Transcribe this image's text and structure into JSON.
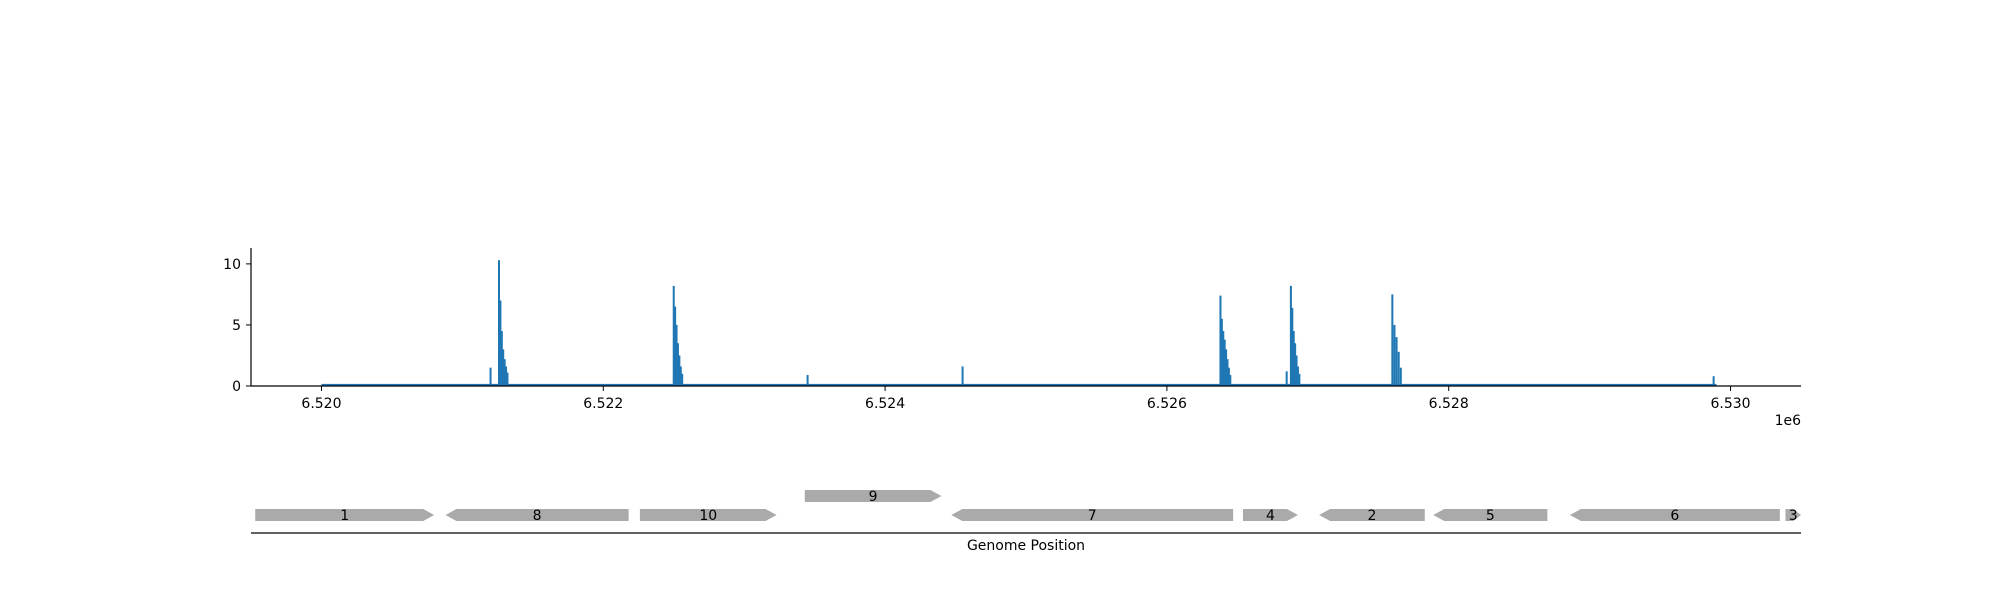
{
  "chart_data": [
    {
      "type": "bar",
      "xlim": [
        6519500,
        6530500
      ],
      "ylim": [
        0,
        11.3
      ],
      "x_offset_label": "1e6",
      "x_ticks": [
        {
          "value": 6520000,
          "label": "6.520"
        },
        {
          "value": 6522000,
          "label": "6.522"
        },
        {
          "value": 6524000,
          "label": "6.524"
        },
        {
          "value": 6526000,
          "label": "6.526"
        },
        {
          "value": 6528000,
          "label": "6.528"
        },
        {
          "value": 6530000,
          "label": "6.530"
        }
      ],
      "y_ticks": [
        {
          "value": 0,
          "label": "0"
        },
        {
          "value": 5,
          "label": "5"
        },
        {
          "value": 10,
          "label": "10"
        }
      ],
      "baseline": {
        "x_start": 6520000,
        "x_end": 6529900,
        "value": 0.05
      },
      "color": "#1f77b4",
      "points": [
        {
          "x": 6521200,
          "y": 1.5
        },
        {
          "x": 6521260,
          "y": 10.3
        },
        {
          "x": 6521270,
          "y": 7.0
        },
        {
          "x": 6521280,
          "y": 4.5
        },
        {
          "x": 6521290,
          "y": 3.0
        },
        {
          "x": 6521300,
          "y": 2.2
        },
        {
          "x": 6521310,
          "y": 1.6
        },
        {
          "x": 6521320,
          "y": 1.1
        },
        {
          "x": 6522500,
          "y": 8.2
        },
        {
          "x": 6522510,
          "y": 6.5
        },
        {
          "x": 6522520,
          "y": 5.0
        },
        {
          "x": 6522530,
          "y": 3.5
        },
        {
          "x": 6522540,
          "y": 2.5
        },
        {
          "x": 6522550,
          "y": 1.6
        },
        {
          "x": 6522560,
          "y": 1.0
        },
        {
          "x": 6523450,
          "y": 0.9
        },
        {
          "x": 6524550,
          "y": 1.6
        },
        {
          "x": 6526380,
          "y": 7.4
        },
        {
          "x": 6526390,
          "y": 5.5
        },
        {
          "x": 6526400,
          "y": 4.5
        },
        {
          "x": 6526410,
          "y": 3.8
        },
        {
          "x": 6526420,
          "y": 3.0
        },
        {
          "x": 6526430,
          "y": 2.2
        },
        {
          "x": 6526440,
          "y": 1.5
        },
        {
          "x": 6526450,
          "y": 0.9
        },
        {
          "x": 6526850,
          "y": 1.2
        },
        {
          "x": 6526880,
          "y": 8.2
        },
        {
          "x": 6526890,
          "y": 6.4
        },
        {
          "x": 6526900,
          "y": 4.5
        },
        {
          "x": 6526910,
          "y": 3.5
        },
        {
          "x": 6526920,
          "y": 2.5
        },
        {
          "x": 6526930,
          "y": 1.6
        },
        {
          "x": 6526940,
          "y": 1.0
        },
        {
          "x": 6527600,
          "y": 7.5
        },
        {
          "x": 6527615,
          "y": 5.0
        },
        {
          "x": 6527630,
          "y": 4.0
        },
        {
          "x": 6527645,
          "y": 2.8
        },
        {
          "x": 6527660,
          "y": 1.5
        },
        {
          "x": 6529880,
          "y": 0.8
        }
      ]
    },
    {
      "type": "gene-track",
      "xlabel": "Genome Position",
      "genes": [
        {
          "label": "1",
          "start": 6519530,
          "end": 6520800,
          "strand": "+",
          "row": 0
        },
        {
          "label": "8",
          "start": 6520880,
          "end": 6522180,
          "strand": "-",
          "row": 0
        },
        {
          "label": "10",
          "start": 6522260,
          "end": 6523230,
          "strand": "+",
          "row": 0
        },
        {
          "label": "9",
          "start": 6523430,
          "end": 6524400,
          "strand": "+",
          "row": 1
        },
        {
          "label": "7",
          "start": 6524470,
          "end": 6526470,
          "strand": "-",
          "row": 0
        },
        {
          "label": "4",
          "start": 6526540,
          "end": 6526930,
          "strand": "+",
          "row": 0
        },
        {
          "label": "2",
          "start": 6527080,
          "end": 6527830,
          "strand": "-",
          "row": 0
        },
        {
          "label": "5",
          "start": 6527890,
          "end": 6528700,
          "strand": "-",
          "row": 0
        },
        {
          "label": "6",
          "start": 6528860,
          "end": 6530350,
          "strand": "-",
          "row": 0
        },
        {
          "label": "3",
          "start": 6530390,
          "end": 6530500,
          "strand": "+",
          "row": 0
        }
      ],
      "color": "#aaaaaa"
    }
  ]
}
